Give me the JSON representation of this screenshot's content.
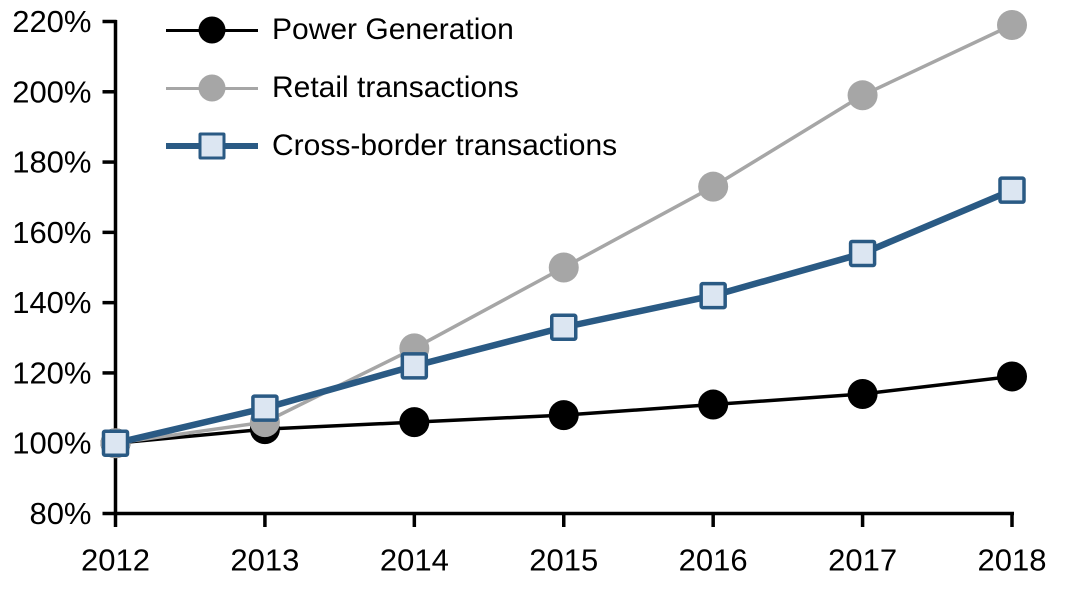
{
  "chart_data": {
    "type": "line",
    "title": "",
    "x": [
      2012,
      2013,
      2014,
      2015,
      2016,
      2017,
      2018
    ],
    "x_labels": [
      "2012",
      "2013",
      "2014",
      "2015",
      "2016",
      "2017",
      "2018"
    ],
    "ylim": [
      80,
      220
    ],
    "yticks": [
      {
        "value": 80,
        "label": "80%"
      },
      {
        "value": 100,
        "label": "100%"
      },
      {
        "value": 120,
        "label": "120%"
      },
      {
        "value": 140,
        "label": "140%"
      },
      {
        "value": 160,
        "label": "160%"
      },
      {
        "value": 180,
        "label": "180%"
      },
      {
        "value": 200,
        "label": "200%"
      },
      {
        "value": 220,
        "label": "220%"
      }
    ],
    "grid": false,
    "legend_position": "top-left",
    "axis_color": "#000000",
    "series": [
      {
        "name": "Power Generation",
        "color": "#000000",
        "marker": "circle",
        "marker_fill": "#000000",
        "line_width": 3.5,
        "values": [
          100,
          104,
          106,
          108,
          111,
          114,
          119
        ]
      },
      {
        "name": "Retail transactions",
        "color": "#A6A6A6",
        "marker": "circle",
        "marker_fill": "#A6A6A6",
        "line_width": 3.5,
        "values": [
          100,
          106,
          127,
          150,
          173,
          199,
          219
        ]
      },
      {
        "name": "Cross-border transactions",
        "color": "#2A5A84",
        "marker": "square",
        "marker_fill": "#DCE6F2",
        "line_width": 6.5,
        "values": [
          100,
          110,
          122,
          133,
          142,
          154,
          172
        ]
      }
    ]
  }
}
